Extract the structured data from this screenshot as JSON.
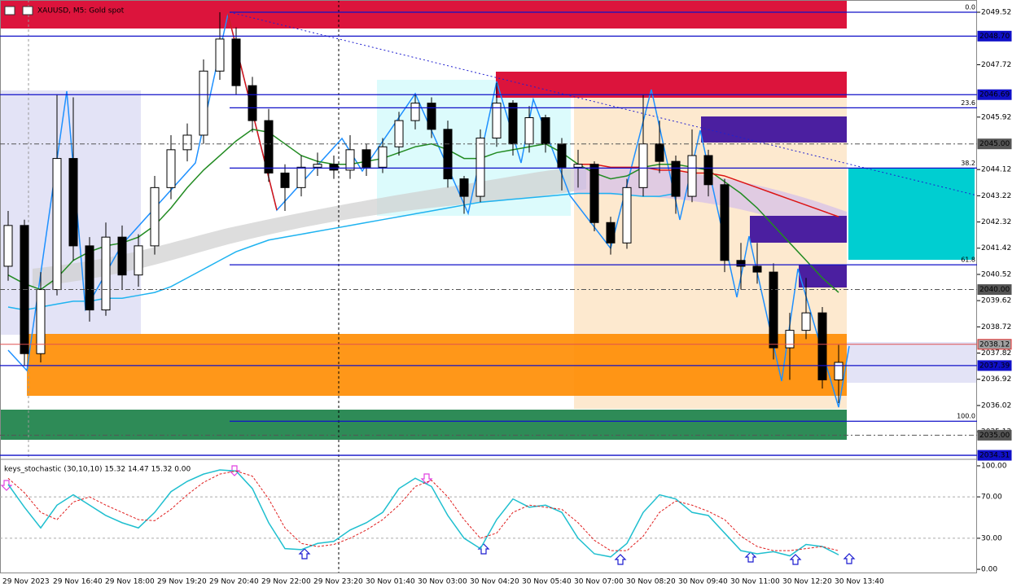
{
  "chart_data": [
    {
      "type": "candlestick",
      "title": "XAUUSD, M5:  Gold spot",
      "up_color": "#ffffff",
      "down_color": "#000000",
      "open": [
        2040.8,
        2042.2,
        2037.8,
        2040.0,
        2044.5,
        2041.5,
        2039.3,
        2041.8,
        2040.5,
        2041.5,
        2043.5,
        2044.8,
        2045.3,
        2047.5,
        2048.6,
        2047.0,
        2045.8,
        2044.0,
        2043.5,
        2044.2,
        2044.3,
        2044.1,
        2044.8,
        2044.2,
        2044.9,
        2045.8,
        2046.4,
        2045.5,
        2043.8,
        2043.2,
        2045.2,
        2046.4,
        2045.0,
        2045.9,
        2045.0,
        2044.2,
        2044.3,
        2042.3,
        2041.6,
        2043.5,
        2045.0,
        2044.4,
        2043.2,
        2044.6,
        2043.6,
        2041.0,
        2040.8,
        2040.6,
        2038.0,
        2038.6,
        2039.2,
        2036.9
      ],
      "high": [
        2042.7,
        2042.4,
        2040.6,
        2046.7,
        2046.6,
        2041.8,
        2042.3,
        2042.2,
        2041.9,
        2043.9,
        2045.3,
        2045.7,
        2047.9,
        2049.52,
        2049.0,
        2047.3,
        2046.2,
        2044.3,
        2044.6,
        2044.7,
        2044.6,
        2045.3,
        2045.0,
        2045.2,
        2046.1,
        2046.7,
        2046.6,
        2045.8,
        2043.9,
        2045.5,
        2047.1,
        2046.5,
        2046.3,
        2046.0,
        2045.2,
        2044.8,
        2044.4,
        2042.5,
        2043.8,
        2046.7,
        2045.8,
        2044.6,
        2045.5,
        2044.8,
        2043.8,
        2041.6,
        2041.6,
        2040.9,
        2039.2,
        2040.4,
        2039.4,
        2038.1
      ],
      "low": [
        2040.3,
        2037.4,
        2037.5,
        2039.8,
        2041.0,
        2038.9,
        2039.1,
        2040.0,
        2040.1,
        2041.2,
        2043.1,
        2044.4,
        2045.0,
        2047.2,
        2046.7,
        2045.4,
        2043.7,
        2042.7,
        2043.2,
        2043.9,
        2043.8,
        2043.8,
        2043.9,
        2044.0,
        2044.6,
        2045.5,
        2045.2,
        2043.5,
        2042.6,
        2043.0,
        2044.9,
        2044.6,
        2044.7,
        2044.7,
        2043.4,
        2043.5,
        2042.0,
        2041.2,
        2041.4,
        2043.2,
        2044.0,
        2042.6,
        2043.0,
        2043.2,
        2040.6,
        2040.0,
        2040.2,
        2037.6,
        2036.9,
        2038.3,
        2036.6,
        2036.1
      ],
      "close": [
        2042.2,
        2037.8,
        2040.0,
        2044.5,
        2041.5,
        2039.3,
        2041.8,
        2040.5,
        2041.5,
        2043.5,
        2044.8,
        2045.3,
        2047.5,
        2048.6,
        2047.0,
        2045.8,
        2044.0,
        2043.5,
        2044.2,
        2044.3,
        2044.1,
        2044.8,
        2044.2,
        2044.9,
        2045.8,
        2046.4,
        2045.5,
        2043.8,
        2043.2,
        2045.2,
        2046.4,
        2045.0,
        2045.9,
        2045.0,
        2044.2,
        2044.3,
        2042.3,
        2041.6,
        2043.5,
        2045.0,
        2044.4,
        2043.2,
        2044.6,
        2043.6,
        2041.0,
        2040.8,
        2040.6,
        2038.0,
        2038.6,
        2039.2,
        2036.9,
        2037.5
      ],
      "series": [
        {
          "color": "#228b22",
          "values": [
            2040.5,
            2040.2,
            2040.0,
            2040.4,
            2041.0,
            2041.3,
            2041.5,
            2041.6,
            2041.8,
            2042.2,
            2042.8,
            2043.5,
            2044.1,
            2044.6,
            2045.1,
            2045.5,
            2045.4,
            2045.0,
            2044.6,
            2044.4,
            2044.3,
            2044.3,
            2044.4,
            2044.5,
            2044.7,
            2044.9,
            2045.0,
            2044.8,
            2044.5,
            2044.5,
            2044.7,
            2044.8,
            2044.9,
            2045.0,
            2044.7,
            2044.3,
            2044.0,
            2043.8,
            2043.9,
            2044.2,
            2044.3,
            2044.3,
            2044.2,
            2044.1,
            2043.7,
            2043.3,
            2042.8,
            2042.2,
            2041.6,
            2041.0,
            2040.4,
            2039.9
          ]
        },
        {
          "color": "#1fb3f0",
          "values": [
            2039.4,
            2039.3,
            2039.4,
            2039.5,
            2039.6,
            2039.6,
            2039.7,
            2039.7,
            2039.8,
            2039.9,
            2040.1,
            2040.4,
            2040.7,
            2041.0,
            2041.3,
            2041.5,
            2041.7,
            2041.8,
            2041.9,
            2042.0,
            2042.1,
            2042.2,
            2042.3,
            2042.4,
            2042.5,
            2042.6,
            2042.7,
            2042.8,
            2042.9,
            2043.0,
            2043.05,
            2043.1,
            2043.15,
            2043.2,
            2043.25,
            2043.3,
            2043.3,
            2043.3,
            2043.25,
            2043.2,
            2043.2,
            2043.3,
            null,
            null,
            null,
            null,
            null,
            null,
            null,
            null,
            null,
            null
          ]
        },
        {
          "color": "#dc1414",
          "values": [
            null,
            null,
            null,
            null,
            null,
            null,
            null,
            null,
            null,
            null,
            null,
            null,
            null,
            null,
            null,
            null,
            null,
            null,
            null,
            null,
            null,
            null,
            null,
            null,
            null,
            null,
            null,
            null,
            null,
            null,
            null,
            null,
            null,
            null,
            null,
            2044.3,
            2044.3,
            2044.2,
            2044.2,
            2044.2,
            2044.1,
            2044.1,
            2044.0,
            2044.0,
            2043.9,
            2043.7,
            2043.5,
            2043.3,
            2043.1,
            2042.9,
            2042.7,
            2042.5
          ]
        }
      ],
      "ylim": [
        2034.2,
        2049.94
      ],
      "yticks": [
        2049.52,
        2047.72,
        2045.92,
        2044.12,
        2043.22,
        2042.32,
        2041.42,
        2040.52,
        2039.62,
        2038.72,
        2037.82,
        2036.92,
        2036.02,
        2035.12
      ],
      "levels": [
        {
          "value": 2048.7,
          "label": "2048.70",
          "style": "solid"
        },
        {
          "value": 2046.69,
          "label": "2046.69",
          "style": "solid"
        },
        {
          "value": 2045,
          "label": "2045.00",
          "style": "dashed"
        },
        {
          "value": 2040,
          "label": "2040.00",
          "style": "dashed"
        },
        {
          "value": 2038.12,
          "label": "2038.12",
          "style": "bid"
        },
        {
          "value": 2037.39,
          "label": "2037.39",
          "style": "solid"
        },
        {
          "value": 2035,
          "label": "2035.00",
          "style": "dashed"
        },
        {
          "value": 2034.31,
          "label": "2034.31",
          "style": "solid"
        }
      ],
      "fib_levels": [
        {
          "value": 2049.52,
          "label": "0.0"
        },
        {
          "value": 2046.24,
          "label": "23.6"
        },
        {
          "value": 2044.17,
          "label": "38.2"
        },
        {
          "value": 2040.85,
          "label": "61.8"
        },
        {
          "value": 2035.48,
          "label": "100.0"
        }
      ]
    },
    {
      "type": "line",
      "title": "keys_stochastic (30,10,10) 15.32 14.47 15.32 0.00",
      "series": [
        {
          "color": "#1fbfcf",
          "style": "solid",
          "values": [
            82,
            60,
            40,
            62,
            72,
            62,
            52,
            45,
            40,
            55,
            75,
            85,
            92,
            96,
            95,
            78,
            45,
            20,
            19,
            25,
            27,
            38,
            45,
            55,
            78,
            88,
            80,
            52,
            30,
            20,
            48,
            68,
            60,
            62,
            55,
            30,
            15,
            12,
            25,
            55,
            72,
            68,
            55,
            52,
            35,
            18,
            15,
            17,
            13,
            24,
            22,
            14
          ]
        },
        {
          "color": "#e01e1e",
          "style": "dashed",
          "values": [
            88,
            74,
            55,
            48,
            65,
            70,
            62,
            55,
            48,
            47,
            58,
            72,
            84,
            92,
            95,
            90,
            68,
            40,
            25,
            22,
            24,
            30,
            38,
            48,
            62,
            80,
            86,
            70,
            48,
            30,
            35,
            55,
            62,
            60,
            58,
            45,
            28,
            18,
            18,
            32,
            55,
            66,
            62,
            56,
            48,
            32,
            22,
            18,
            18,
            20,
            22,
            18
          ]
        }
      ],
      "ylim": [
        -3.9,
        104.7
      ],
      "yticks": [
        {
          "value": 100,
          "label": "100.00"
        },
        {
          "value": 70,
          "label": "70.00"
        },
        {
          "value": 30,
          "label": "30.00"
        },
        {
          "value": 0,
          "label": "0.00"
        }
      ],
      "grid": true,
      "x_labels": [
        "29 Nov 2023",
        "29 Nov 16:40",
        "29 Nov 18:00",
        "29 Nov 19:20",
        "29 Nov 20:40",
        "29 Nov 22:00",
        "29 Nov 23:20",
        "30 Nov 01:40",
        "30 Nov 03:00",
        "30 Nov 04:20",
        "30 Nov 05:40",
        "30 Nov 07:00",
        "30 Nov 08:20",
        "30 Nov 09:40",
        "30 Nov 11:00",
        "30 Nov 12:20",
        "30 Nov 13:40"
      ]
    }
  ]
}
